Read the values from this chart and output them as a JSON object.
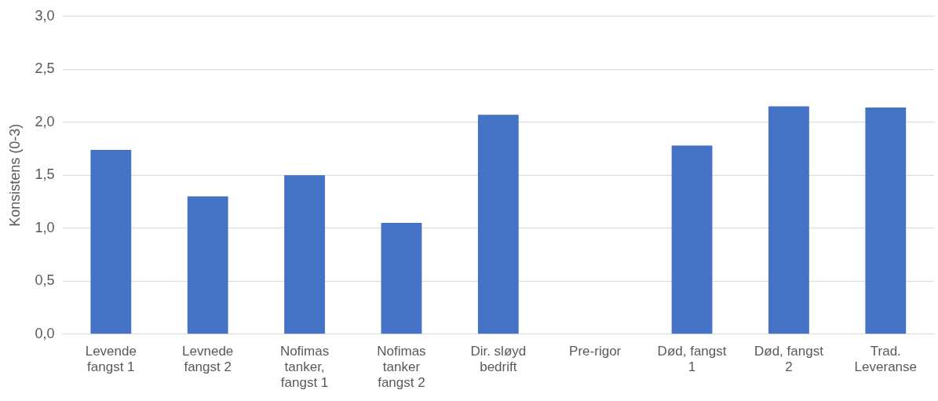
{
  "chart_data": {
    "type": "bar",
    "ylabel": "Konsistens (0-3)",
    "categories": [
      "Levende fangst 1",
      "Levnede fangst 2",
      "Nofimas tanker, fangst 1",
      "Nofimas tanker fangst 2",
      "Dir. sløyd bedrift",
      "Pre-rigor",
      "Død, fangst 1",
      "Død, fangst 2",
      "Trad. Leveranse"
    ],
    "values": [
      1.74,
      1.3,
      1.5,
      1.05,
      2.07,
      null,
      1.78,
      2.15,
      2.14
    ],
    "color": "#4472c4",
    "ylim": [
      0,
      3
    ],
    "yticks": [
      {
        "value": 0,
        "label": "0,0"
      },
      {
        "value": 0.5,
        "label": "0,5"
      },
      {
        "value": 1,
        "label": "1,0"
      },
      {
        "value": 1.5,
        "label": "1,5"
      },
      {
        "value": 2,
        "label": "2,0"
      },
      {
        "value": 2.5,
        "label": "2,5"
      },
      {
        "value": 3,
        "label": "3,0"
      }
    ],
    "grid": "y"
  }
}
